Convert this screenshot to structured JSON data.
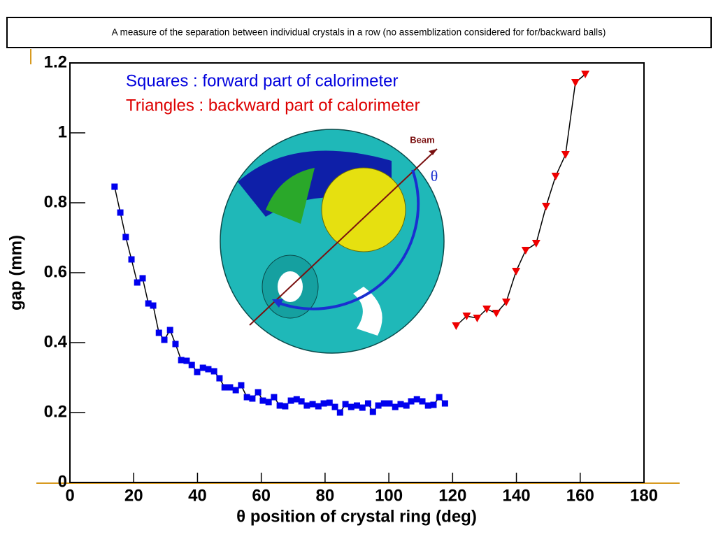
{
  "slide_title": "A measure of the separation between individual crystals in a row (no assemblization considered for for/backward balls)",
  "chart_data": {
    "type": "line",
    "xlabel": "θ position of crystal ring (deg)",
    "ylabel": "gap (mm)",
    "xlim": [
      0,
      180
    ],
    "xticks": [
      0,
      20,
      40,
      60,
      80,
      100,
      120,
      140,
      160,
      180
    ],
    "ylim": [
      0,
      1.2
    ],
    "yticks": [
      0,
      0.2,
      0.4,
      0.6,
      0.8,
      1,
      1.2
    ],
    "annotations": [
      {
        "text": "Squares : forward part of calorimeter",
        "color": "#0000dd"
      },
      {
        "text": "Triangles : backward part of calorimeter",
        "color": "#dd0000"
      },
      {
        "text": "Beam",
        "color": "#7a1010"
      },
      {
        "text": "θ",
        "color": "#1a2fd0"
      }
    ],
    "series": [
      {
        "name": "Squares",
        "color": "#0000ee",
        "marker": "square",
        "x": [
          14.0,
          15.8,
          17.5,
          19.3,
          21.1,
          22.8,
          24.6,
          26.1,
          27.9,
          29.6,
          31.4,
          33.1,
          34.9,
          36.6,
          38.2,
          39.9,
          41.7,
          43.4,
          45.2,
          46.9,
          48.5,
          50.2,
          52.0,
          53.7,
          55.5,
          57.2,
          59.0,
          60.5,
          62.3,
          64.0,
          65.8,
          67.5,
          69.3,
          71.1,
          72.6,
          74.3,
          76.1,
          77.9,
          79.6,
          81.4,
          83.1,
          84.7,
          86.4,
          88.2,
          90.0,
          91.7,
          93.5,
          95.0,
          96.7,
          98.5,
          100.2,
          102.0,
          103.7,
          105.5,
          107.0,
          108.8,
          110.5,
          112.3,
          114.0,
          115.8,
          117.6
        ],
        "values": [
          0.846,
          0.772,
          0.702,
          0.638,
          0.572,
          0.584,
          0.512,
          0.506,
          0.428,
          0.408,
          0.436,
          0.396,
          0.35,
          0.348,
          0.336,
          0.316,
          0.328,
          0.324,
          0.318,
          0.298,
          0.272,
          0.272,
          0.264,
          0.278,
          0.244,
          0.24,
          0.258,
          0.234,
          0.23,
          0.244,
          0.22,
          0.218,
          0.234,
          0.238,
          0.232,
          0.22,
          0.224,
          0.218,
          0.226,
          0.228,
          0.216,
          0.2,
          0.224,
          0.216,
          0.22,
          0.214,
          0.226,
          0.202,
          0.22,
          0.226,
          0.226,
          0.216,
          0.224,
          0.22,
          0.232,
          0.238,
          0.232,
          0.22,
          0.222,
          0.244,
          0.226
        ]
      },
      {
        "name": "Triangles",
        "color": "#ee0000",
        "marker": "triangle-down",
        "x": [
          121.1,
          124.4,
          127.7,
          130.7,
          133.7,
          136.8,
          139.9,
          142.9,
          146.2,
          149.3,
          152.3,
          155.4,
          158.5,
          161.6
        ],
        "values": [
          0.448,
          0.476,
          0.47,
          0.496,
          0.484,
          0.516,
          0.604,
          0.664,
          0.684,
          0.79,
          0.876,
          0.938,
          1.144,
          1.168
        ]
      }
    ]
  }
}
